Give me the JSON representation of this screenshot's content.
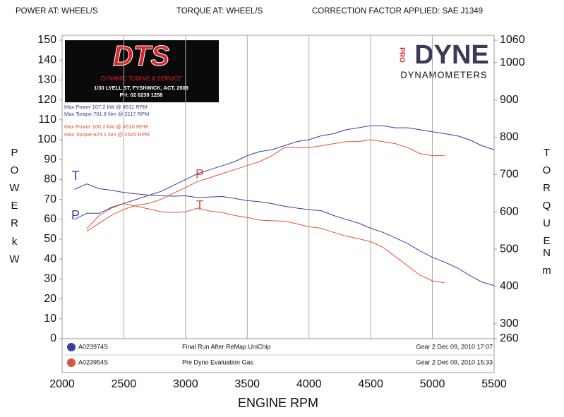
{
  "chart_data": {
    "type": "line",
    "header": [
      "POWER AT: WHEEL/S",
      "TORQUE AT: WHEEL/S",
      "CORRECTION FACTOR APPLIED: SAE J1349"
    ],
    "xlabel": "ENGINE RPM",
    "ylabel": "POWER",
    "ylabel_unit": "kW",
    "y2label": "TORQUE",
    "y2label_unit": "Nm",
    "xlim": [
      2000,
      5500
    ],
    "xticks": [
      2000,
      2500,
      3000,
      3500,
      4000,
      4500,
      5000,
      5500
    ],
    "ylim": [
      0,
      150
    ],
    "yticks": [
      0,
      10,
      20,
      30,
      40,
      50,
      60,
      70,
      80,
      90,
      100,
      110,
      120,
      130,
      140,
      150
    ],
    "y2lim": [
      260,
      1060
    ],
    "y2ticks": [
      260,
      300,
      400,
      500,
      600,
      700,
      800,
      900,
      1000,
      1060
    ],
    "grid": "x",
    "shop_logo": {
      "name": "DTS",
      "tagline": "DYNAMIC TUNING & SERVICE",
      "address": "1/30 LYELL ST, FYSHWICK, ACT, 2609",
      "phone": "PH: 02 6239 1258"
    },
    "dyno_logo": {
      "prefix": "PRO",
      "name": "DYNE",
      "sub": "DYNAMOMETERS"
    },
    "stats": [
      {
        "text": "Max Power 107.2 kW @ 4511 RPM",
        "color": "#3a3ea0"
      },
      {
        "text": "Max Torque 701.8 Nm @ 2117 RPM",
        "color": "#3a3ea0"
      },
      {
        "text": "Max Power 100.2 kW @ 4516 RPM",
        "color": "#e0503c"
      },
      {
        "text": "Max Torque 624.1 Nm @ 2525 RPM",
        "color": "#e0503c"
      }
    ],
    "runs": [
      {
        "id": "A023974S",
        "description": "Final Run After ReMap UniChip",
        "info": "Gear 2 Dec 09, 2010 17:07",
        "color": "#3a3ea0"
      },
      {
        "id": "A023954S",
        "description": "Pre Dyno Evaluation Gas",
        "info": "Gear 2 Dec 09, 2010 15:33",
        "color": "#e0503c"
      }
    ],
    "annotations": [
      {
        "text": "T",
        "color": "#3a3ea0"
      },
      {
        "text": "P",
        "color": "#3a3ea0"
      },
      {
        "text": "P",
        "color": "#e0503c"
      },
      {
        "text": "T",
        "color": "#e0503c"
      }
    ],
    "series": [
      {
        "color": "#3a3ea0",
        "x": [
          2100,
          2200,
          2300,
          2400,
          2500,
          2600,
          2700,
          2800,
          2900,
          3000,
          3100,
          3200,
          3300,
          3400,
          3500,
          3600,
          3700,
          3800,
          3900,
          4000,
          4100,
          4200,
          4300,
          4400,
          4500,
          4600,
          4700,
          4800,
          4900,
          5000,
          5100,
          5200,
          5300,
          5400,
          5500
        ],
        "values": [
          60,
          63,
          63,
          66,
          68,
          70,
          72,
          74,
          77,
          80,
          83,
          85,
          87,
          89,
          92,
          94,
          95,
          97,
          99,
          100,
          102,
          103,
          105,
          106,
          107,
          107,
          106,
          106,
          105,
          104,
          103,
          102,
          100,
          97,
          95
        ]
      },
      {
        "color": "#3a3ea0",
        "axis": "y2",
        "x": [
          2100,
          2200,
          2300,
          2400,
          2500,
          2600,
          2700,
          2800,
          2900,
          3000,
          3100,
          3200,
          3300,
          3400,
          3500,
          3600,
          3700,
          3800,
          3900,
          4000,
          4100,
          4200,
          4300,
          4400,
          4500,
          4600,
          4700,
          4800,
          4900,
          5000,
          5100,
          5200,
          5300,
          5400,
          5500
        ],
        "values": [
          660,
          675,
          662,
          658,
          652,
          648,
          645,
          643,
          642,
          643,
          638,
          640,
          641,
          636,
          630,
          627,
          622,
          615,
          610,
          606,
          603,
          590,
          580,
          570,
          556,
          545,
          530,
          515,
          495,
          478,
          465,
          450,
          430,
          412,
          402
        ]
      },
      {
        "color": "#e0503c",
        "x": [
          2200,
          2300,
          2400,
          2500,
          2600,
          2700,
          2800,
          2900,
          3000,
          3100,
          3200,
          3300,
          3400,
          3500,
          3600,
          3700,
          3800,
          3900,
          4000,
          4100,
          4200,
          4300,
          4400,
          4500,
          4600,
          4700,
          4800,
          4900,
          5000,
          5100
        ],
        "values": [
          54,
          58,
          62,
          65,
          67,
          68,
          70,
          73,
          76,
          79,
          81,
          83,
          85,
          87,
          89,
          92,
          96,
          96,
          96,
          97,
          98,
          99,
          99,
          100,
          99,
          98,
          96,
          93,
          92,
          92
        ]
      },
      {
        "color": "#e0503c",
        "axis": "y2",
        "x": [
          2200,
          2300,
          2400,
          2500,
          2600,
          2700,
          2800,
          2900,
          3000,
          3100,
          3200,
          3300,
          3400,
          3500,
          3600,
          3700,
          3800,
          3900,
          4000,
          4100,
          4200,
          4300,
          4400,
          4500,
          4600,
          4700,
          4800,
          4900,
          5000,
          5100
        ],
        "values": [
          555,
          590,
          610,
          622,
          615,
          608,
          600,
          598,
          600,
          610,
          602,
          598,
          590,
          585,
          578,
          576,
          575,
          568,
          560,
          556,
          545,
          535,
          528,
          520,
          505,
          480,
          455,
          430,
          415,
          410
        ]
      }
    ]
  }
}
